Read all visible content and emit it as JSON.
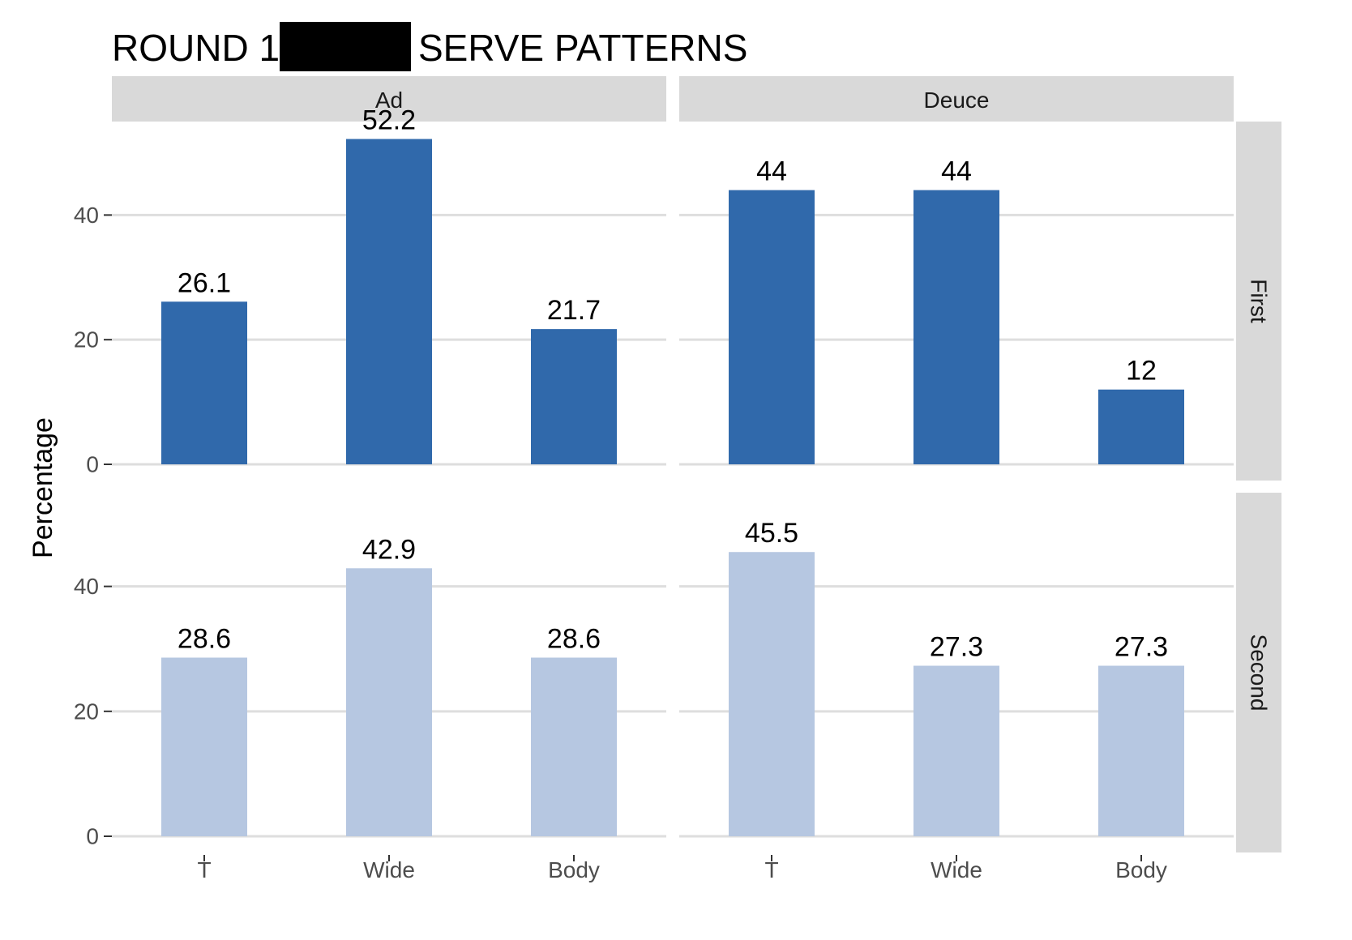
{
  "chart_data": {
    "type": "bar",
    "title_prefix": "ROUND 1",
    "title_suffix": "SERVE PATTERNS",
    "ylabel": "Percentage",
    "xlabel": "",
    "categories": [
      "T",
      "Wide",
      "Body"
    ],
    "columns": [
      "Ad",
      "Deuce"
    ],
    "rows": [
      "First",
      "Second"
    ],
    "yticks": [
      0,
      20,
      40
    ],
    "ylim": [
      0,
      55
    ],
    "grid": true,
    "colors": {
      "First": "#3069ab",
      "Second": "#b6c7e1",
      "strip": "#d9d9d9",
      "grid": "#dedede",
      "redaction": "#000000"
    },
    "panels": [
      {
        "row": "First",
        "column": "Ad",
        "values": [
          26.1,
          52.2,
          21.7
        ],
        "labels": [
          "26.1",
          "52.2",
          "21.7"
        ]
      },
      {
        "row": "First",
        "column": "Deuce",
        "values": [
          44,
          44,
          12
        ],
        "labels": [
          "44",
          "44",
          "12"
        ]
      },
      {
        "row": "Second",
        "column": "Ad",
        "values": [
          28.6,
          42.9,
          28.6
        ],
        "labels": [
          "28.6",
          "42.9",
          "28.6"
        ]
      },
      {
        "row": "Second",
        "column": "Deuce",
        "values": [
          45.5,
          27.3,
          27.3
        ],
        "labels": [
          "45.5",
          "27.3",
          "27.3"
        ]
      }
    ]
  }
}
